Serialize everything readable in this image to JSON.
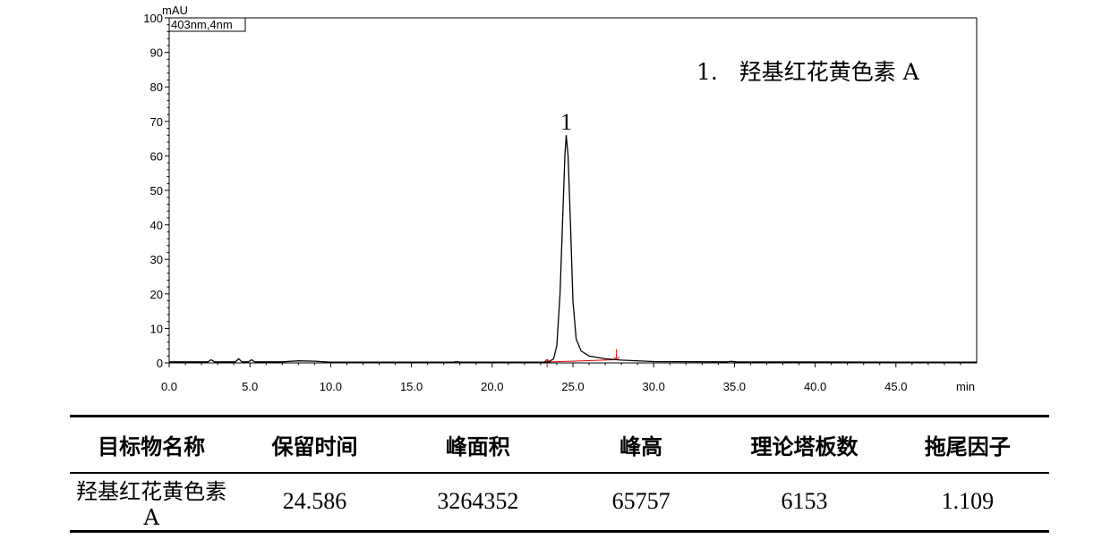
{
  "chart_data": {
    "type": "line",
    "ylabel": "mAU",
    "xlabel": "min",
    "channel": "403nm,4nm",
    "xlim": [
      0,
      50
    ],
    "ylim": [
      0,
      100
    ],
    "x_ticks": [
      "0.0",
      "5.0",
      "10.0",
      "15.0",
      "20.0",
      "25.0",
      "30.0",
      "35.0",
      "40.0",
      "45.0"
    ],
    "y_ticks": [
      "0",
      "10",
      "20",
      "30",
      "40",
      "50",
      "60",
      "70",
      "80",
      "90",
      "100"
    ],
    "legend": "1.   羟基红花黄色素 A",
    "peaks": [
      {
        "label": "1",
        "retention_time": 24.586,
        "height": 66
      }
    ],
    "integration_marks": [
      23.4,
      27.7
    ],
    "trace": [
      [
        0,
        0.3
      ],
      [
        2.4,
        0.3
      ],
      [
        2.6,
        0.9
      ],
      [
        2.8,
        0.3
      ],
      [
        4.1,
        0.3
      ],
      [
        4.3,
        1.2
      ],
      [
        4.5,
        0.3
      ],
      [
        4.9,
        0.3
      ],
      [
        5.1,
        0.9
      ],
      [
        5.3,
        0.3
      ],
      [
        7.0,
        0.3
      ],
      [
        8.0,
        0.6
      ],
      [
        9.0,
        0.5
      ],
      [
        10.0,
        0.2
      ],
      [
        17.6,
        0.2
      ],
      [
        17.8,
        0.4
      ],
      [
        18.0,
        0.2
      ],
      [
        23.2,
        0.2
      ],
      [
        23.5,
        0.3
      ],
      [
        23.8,
        1.2
      ],
      [
        24.0,
        5.0
      ],
      [
        24.2,
        20.0
      ],
      [
        24.35,
        40.0
      ],
      [
        24.5,
        60.0
      ],
      [
        24.586,
        66.0
      ],
      [
        24.7,
        60.0
      ],
      [
        24.85,
        40.0
      ],
      [
        25.0,
        18.0
      ],
      [
        25.2,
        7.0
      ],
      [
        25.5,
        3.5
      ],
      [
        26.0,
        2.0
      ],
      [
        27.0,
        1.2
      ],
      [
        28.0,
        0.8
      ],
      [
        30.0,
        0.4
      ],
      [
        34.5,
        0.3
      ],
      [
        34.8,
        0.45
      ],
      [
        35.1,
        0.3
      ],
      [
        50.0,
        0.2
      ]
    ]
  },
  "table": {
    "headers": [
      "目标物名称",
      "保留时间",
      "峰面积",
      "峰高",
      "理论塔板数",
      "拖尾因子"
    ],
    "rows": [
      [
        "羟基红花黄色素 A",
        "24.586",
        "3264352",
        "65757",
        "6153",
        "1.109"
      ]
    ]
  }
}
